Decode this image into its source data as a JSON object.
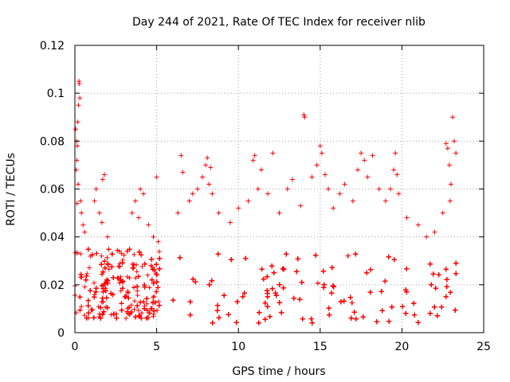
{
  "chart_data": {
    "type": "scatter",
    "title": "Day 244 of 2021, Rate Of TEC Index for receiver nlib",
    "xlabel": "GPS time / hours",
    "ylabel": "ROTI / TECUs",
    "xlim": [
      0,
      25
    ],
    "ylim": [
      0,
      0.12
    ],
    "x_ticks": [
      0,
      5,
      10,
      15,
      20,
      25
    ],
    "x_tick_labels": [
      "0",
      "5",
      "10",
      "15",
      "20",
      "25"
    ],
    "y_ticks": [
      0,
      0.02,
      0.04,
      0.06,
      0.08,
      0.1,
      0.12
    ],
    "y_tick_labels": [
      "0",
      "0.02",
      "0.04",
      "0.06",
      "0.08",
      "0.1",
      "0.12"
    ],
    "grid": true,
    "marker": "plus",
    "color": "#ff0000",
    "series": [
      {
        "segments": [
          {
            "x_start": 0.0,
            "x_end": 5.2,
            "y_low": 0.006,
            "y_high": 0.035
          },
          {
            "x_start": 6.0,
            "x_end": 23.4,
            "y_low": 0.004,
            "y_high": 0.033
          }
        ],
        "points": [
          {
            "x": 0.05,
            "y": 0.085
          },
          {
            "x": 0.1,
            "y": 0.08
          },
          {
            "x": 0.12,
            "y": 0.072
          },
          {
            "x": 0.15,
            "y": 0.078
          },
          {
            "x": 0.2,
            "y": 0.062
          },
          {
            "x": 0.22,
            "y": 0.095
          },
          {
            "x": 0.25,
            "y": 0.105
          },
          {
            "x": 0.27,
            "y": 0.104
          },
          {
            "x": 0.3,
            "y": 0.098
          },
          {
            "x": 0.18,
            "y": 0.088
          },
          {
            "x": 0.35,
            "y": 0.055
          },
          {
            "x": 0.4,
            "y": 0.05
          },
          {
            "x": 0.5,
            "y": 0.045
          },
          {
            "x": 0.08,
            "y": 0.068
          },
          {
            "x": 0.13,
            "y": 0.054
          },
          {
            "x": 0.6,
            "y": 0.042
          },
          {
            "x": 1.2,
            "y": 0.055
          },
          {
            "x": 1.3,
            "y": 0.06
          },
          {
            "x": 1.5,
            "y": 0.05
          },
          {
            "x": 1.7,
            "y": 0.064
          },
          {
            "x": 1.8,
            "y": 0.066
          },
          {
            "x": 1.65,
            "y": 0.046
          },
          {
            "x": 2.0,
            "y": 0.04
          },
          {
            "x": 3.5,
            "y": 0.05
          },
          {
            "x": 3.7,
            "y": 0.055
          },
          {
            "x": 4.0,
            "y": 0.06
          },
          {
            "x": 4.2,
            "y": 0.058
          },
          {
            "x": 3.9,
            "y": 0.048
          },
          {
            "x": 4.5,
            "y": 0.045
          },
          {
            "x": 4.8,
            "y": 0.04
          },
          {
            "x": 5.0,
            "y": 0.065
          },
          {
            "x": 5.1,
            "y": 0.038
          },
          {
            "x": 6.5,
            "y": 0.074
          },
          {
            "x": 6.6,
            "y": 0.067
          },
          {
            "x": 6.3,
            "y": 0.05
          },
          {
            "x": 7.0,
            "y": 0.055
          },
          {
            "x": 7.2,
            "y": 0.058
          },
          {
            "x": 7.5,
            "y": 0.06
          },
          {
            "x": 7.8,
            "y": 0.065
          },
          {
            "x": 8.0,
            "y": 0.07
          },
          {
            "x": 8.1,
            "y": 0.073
          },
          {
            "x": 8.2,
            "y": 0.062
          },
          {
            "x": 8.3,
            "y": 0.069
          },
          {
            "x": 8.4,
            "y": 0.058
          },
          {
            "x": 8.8,
            "y": 0.05
          },
          {
            "x": 9.5,
            "y": 0.046
          },
          {
            "x": 10.0,
            "y": 0.052
          },
          {
            "x": 10.6,
            "y": 0.055
          },
          {
            "x": 10.9,
            "y": 0.072
          },
          {
            "x": 11.0,
            "y": 0.074
          },
          {
            "x": 11.2,
            "y": 0.06
          },
          {
            "x": 11.4,
            "y": 0.068
          },
          {
            "x": 11.8,
            "y": 0.058
          },
          {
            "x": 12.1,
            "y": 0.075
          },
          {
            "x": 12.5,
            "y": 0.05
          },
          {
            "x": 13.0,
            "y": 0.06
          },
          {
            "x": 13.3,
            "y": 0.064
          },
          {
            "x": 13.8,
            "y": 0.053
          },
          {
            "x": 14.0,
            "y": 0.091
          },
          {
            "x": 14.05,
            "y": 0.09
          },
          {
            "x": 14.5,
            "y": 0.065
          },
          {
            "x": 14.8,
            "y": 0.07
          },
          {
            "x": 15.0,
            "y": 0.078
          },
          {
            "x": 15.1,
            "y": 0.075
          },
          {
            "x": 15.3,
            "y": 0.066
          },
          {
            "x": 15.5,
            "y": 0.06
          },
          {
            "x": 15.8,
            "y": 0.052
          },
          {
            "x": 16.2,
            "y": 0.058
          },
          {
            "x": 16.5,
            "y": 0.062
          },
          {
            "x": 17.0,
            "y": 0.055
          },
          {
            "x": 17.3,
            "y": 0.068
          },
          {
            "x": 17.5,
            "y": 0.075
          },
          {
            "x": 17.7,
            "y": 0.072
          },
          {
            "x": 17.9,
            "y": 0.065
          },
          {
            "x": 18.2,
            "y": 0.074
          },
          {
            "x": 18.6,
            "y": 0.06
          },
          {
            "x": 19.0,
            "y": 0.055
          },
          {
            "x": 19.3,
            "y": 0.06
          },
          {
            "x": 19.5,
            "y": 0.068
          },
          {
            "x": 19.6,
            "y": 0.075
          },
          {
            "x": 19.7,
            "y": 0.066
          },
          {
            "x": 19.8,
            "y": 0.058
          },
          {
            "x": 20.3,
            "y": 0.048
          },
          {
            "x": 21.0,
            "y": 0.045
          },
          {
            "x": 21.5,
            "y": 0.04
          },
          {
            "x": 22.0,
            "y": 0.042
          },
          {
            "x": 22.5,
            "y": 0.05
          },
          {
            "x": 22.7,
            "y": 0.079
          },
          {
            "x": 22.8,
            "y": 0.077
          },
          {
            "x": 22.9,
            "y": 0.07
          },
          {
            "x": 23.0,
            "y": 0.062
          },
          {
            "x": 23.1,
            "y": 0.09
          },
          {
            "x": 23.2,
            "y": 0.08
          },
          {
            "x": 23.3,
            "y": 0.075
          },
          {
            "x": 22.95,
            "y": 0.055
          }
        ]
      }
    ]
  }
}
